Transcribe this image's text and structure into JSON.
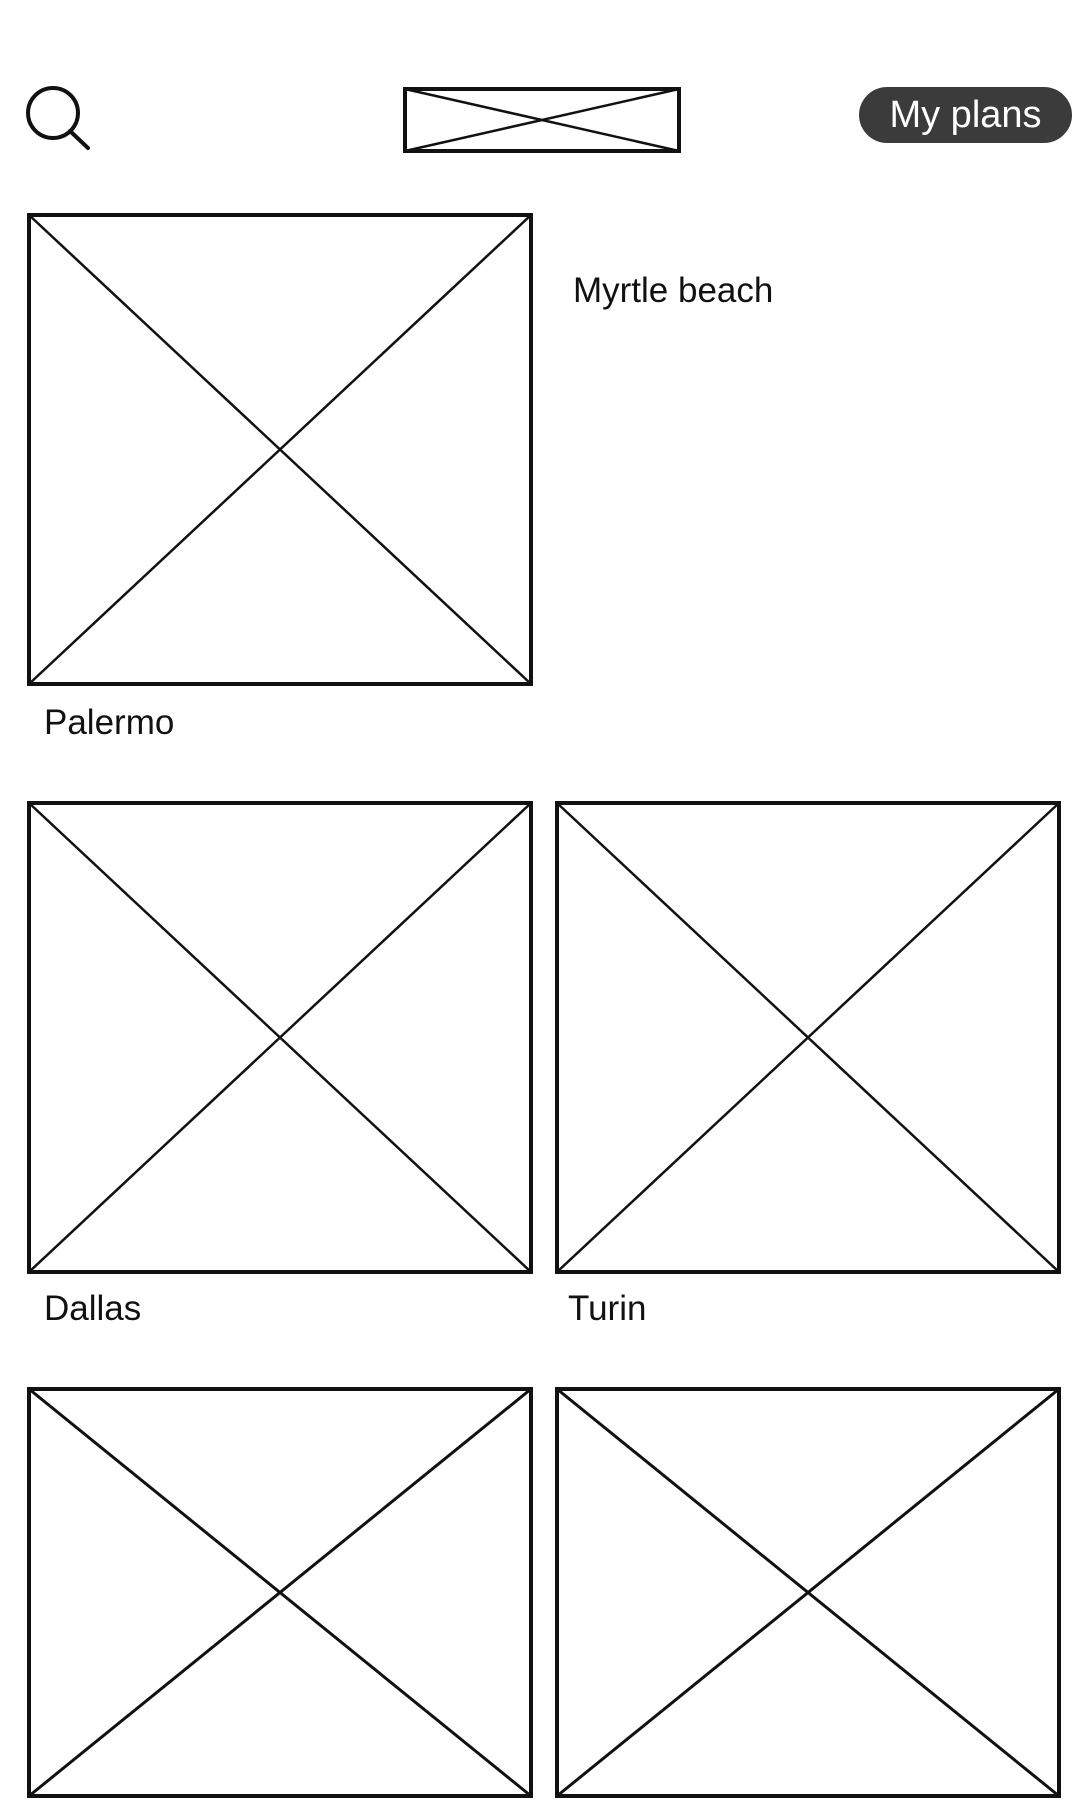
{
  "header": {
    "search_icon": "search-icon",
    "logo": "image-placeholder",
    "my_plans_label": "My plans",
    "my_plans_bg": "#3b3b3b"
  },
  "featured": {
    "name": "Palermo",
    "side_text": "Myrtle beach"
  },
  "destinations": [
    {
      "name": "Dallas"
    },
    {
      "name": "Turin"
    },
    {
      "name": ""
    },
    {
      "name": ""
    }
  ]
}
